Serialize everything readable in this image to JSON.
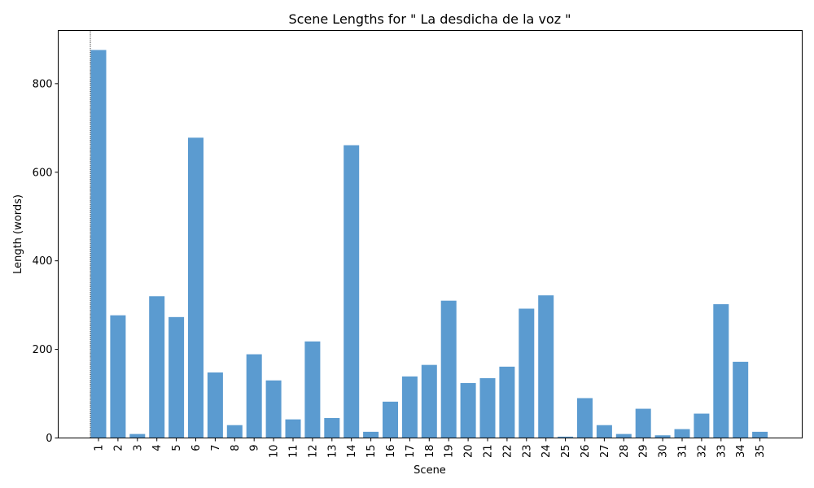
{
  "chart_data": {
    "type": "bar",
    "title": "Scene Lengths for \" La desdicha de la voz \"",
    "xlabel": "Scene",
    "ylabel": "Length (words)",
    "categories": [
      "1",
      "2",
      "3",
      "4",
      "5",
      "6",
      "7",
      "8",
      "9",
      "10",
      "11",
      "12",
      "13",
      "14",
      "15",
      "16",
      "17",
      "18",
      "19",
      "20",
      "21",
      "22",
      "23",
      "24",
      "25",
      "26",
      "27",
      "28",
      "29",
      "30",
      "31",
      "32",
      "33",
      "34",
      "35"
    ],
    "values": [
      876,
      277,
      9,
      320,
      273,
      678,
      148,
      29,
      189,
      130,
      42,
      218,
      45,
      661,
      14,
      82,
      139,
      165,
      310,
      124,
      135,
      161,
      292,
      322,
      3,
      90,
      29,
      9,
      66,
      6,
      20,
      55,
      302,
      172,
      14
    ],
    "ylim": [
      0,
      920
    ],
    "yticks": [
      0,
      200,
      400,
      600,
      800
    ],
    "bar_color": "#5b9bd0",
    "marker_line": {
      "at_category": "1",
      "style": "dotted",
      "color": "#000000"
    },
    "grid": false,
    "legend": "none"
  }
}
